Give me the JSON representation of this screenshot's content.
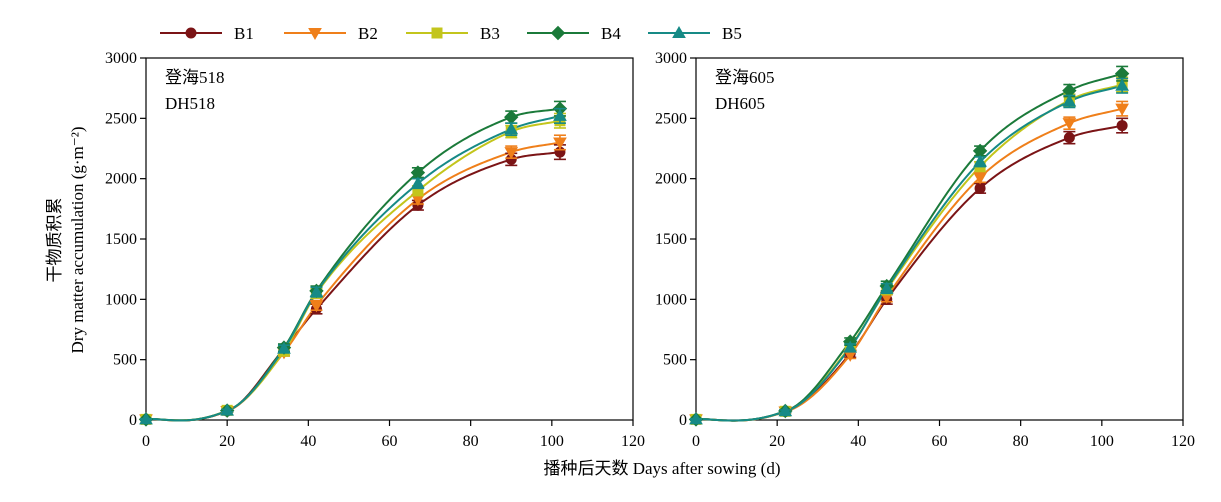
{
  "figure": {
    "xlabel": "播种后天数 Days after sowing (d)",
    "ylabel_cn": "干物质积累",
    "ylabel_en": "Dry matter accumulation (g·m⁻²)"
  },
  "legend": [
    {
      "name": "B1",
      "color": "#7b1416",
      "marker": "circle"
    },
    {
      "name": "B2",
      "color": "#ef7f1a",
      "marker": "triangle-down"
    },
    {
      "name": "B3",
      "color": "#c3c51c",
      "marker": "square"
    },
    {
      "name": "B4",
      "color": "#1b7a3a",
      "marker": "diamond"
    },
    {
      "name": "B5",
      "color": "#168a86",
      "marker": "triangle-up"
    }
  ],
  "chart_data": [
    {
      "type": "line",
      "annotation": [
        "登海518",
        "DH518"
      ],
      "xlim": [
        0,
        120
      ],
      "ylim": [
        0,
        3000
      ],
      "xticks": [
        0,
        20,
        40,
        60,
        80,
        100,
        120
      ],
      "yticks": [
        0,
        500,
        1000,
        1500,
        2000,
        2500,
        3000
      ],
      "grid": false,
      "legend_position": "top",
      "x": [
        0,
        20,
        34,
        42,
        67,
        90,
        102
      ],
      "series": [
        {
          "name": "B1",
          "values": [
            5,
            75,
            590,
            920,
            1780,
            2160,
            2220
          ],
          "errors": [
            5,
            10,
            30,
            40,
            40,
            50,
            60
          ]
        },
        {
          "name": "B2",
          "values": [
            5,
            75,
            560,
            950,
            1830,
            2220,
            2300
          ],
          "errors": [
            5,
            10,
            30,
            40,
            40,
            50,
            60
          ]
        },
        {
          "name": "B3",
          "values": [
            5,
            80,
            570,
            1050,
            1900,
            2390,
            2480
          ],
          "errors": [
            5,
            10,
            30,
            40,
            40,
            50,
            60
          ]
        },
        {
          "name": "B4",
          "values": [
            5,
            78,
            600,
            1070,
            2050,
            2510,
            2580
          ],
          "errors": [
            5,
            10,
            30,
            40,
            40,
            50,
            60
          ]
        },
        {
          "name": "B5",
          "values": [
            5,
            78,
            590,
            1060,
            1960,
            2410,
            2520
          ],
          "errors": [
            5,
            10,
            30,
            40,
            40,
            50,
            60
          ]
        }
      ]
    },
    {
      "type": "line",
      "annotation": [
        "登海605",
        "DH605"
      ],
      "xlim": [
        0,
        120
      ],
      "ylim": [
        0,
        3000
      ],
      "xticks": [
        0,
        20,
        40,
        60,
        80,
        100,
        120
      ],
      "yticks": [
        0,
        500,
        1000,
        1500,
        2000,
        2500,
        3000
      ],
      "grid": false,
      "legend_position": "top",
      "x": [
        0,
        22,
        38,
        47,
        70,
        92,
        105
      ],
      "series": [
        {
          "name": "B1",
          "values": [
            5,
            70,
            550,
            1000,
            1920,
            2340,
            2440
          ],
          "errors": [
            5,
            10,
            30,
            40,
            40,
            50,
            60
          ]
        },
        {
          "name": "B2",
          "values": [
            5,
            70,
            540,
            1020,
            2010,
            2460,
            2580
          ],
          "errors": [
            5,
            10,
            30,
            40,
            40,
            50,
            60
          ]
        },
        {
          "name": "B3",
          "values": [
            5,
            72,
            610,
            1080,
            2100,
            2650,
            2780
          ],
          "errors": [
            5,
            10,
            30,
            40,
            40,
            50,
            60
          ]
        },
        {
          "name": "B4",
          "values": [
            5,
            75,
            650,
            1110,
            2230,
            2730,
            2870
          ],
          "errors": [
            5,
            10,
            30,
            40,
            40,
            50,
            60
          ]
        },
        {
          "name": "B5",
          "values": [
            5,
            73,
            600,
            1090,
            2140,
            2640,
            2770
          ],
          "errors": [
            5,
            10,
            30,
            40,
            40,
            50,
            60
          ]
        }
      ]
    }
  ]
}
